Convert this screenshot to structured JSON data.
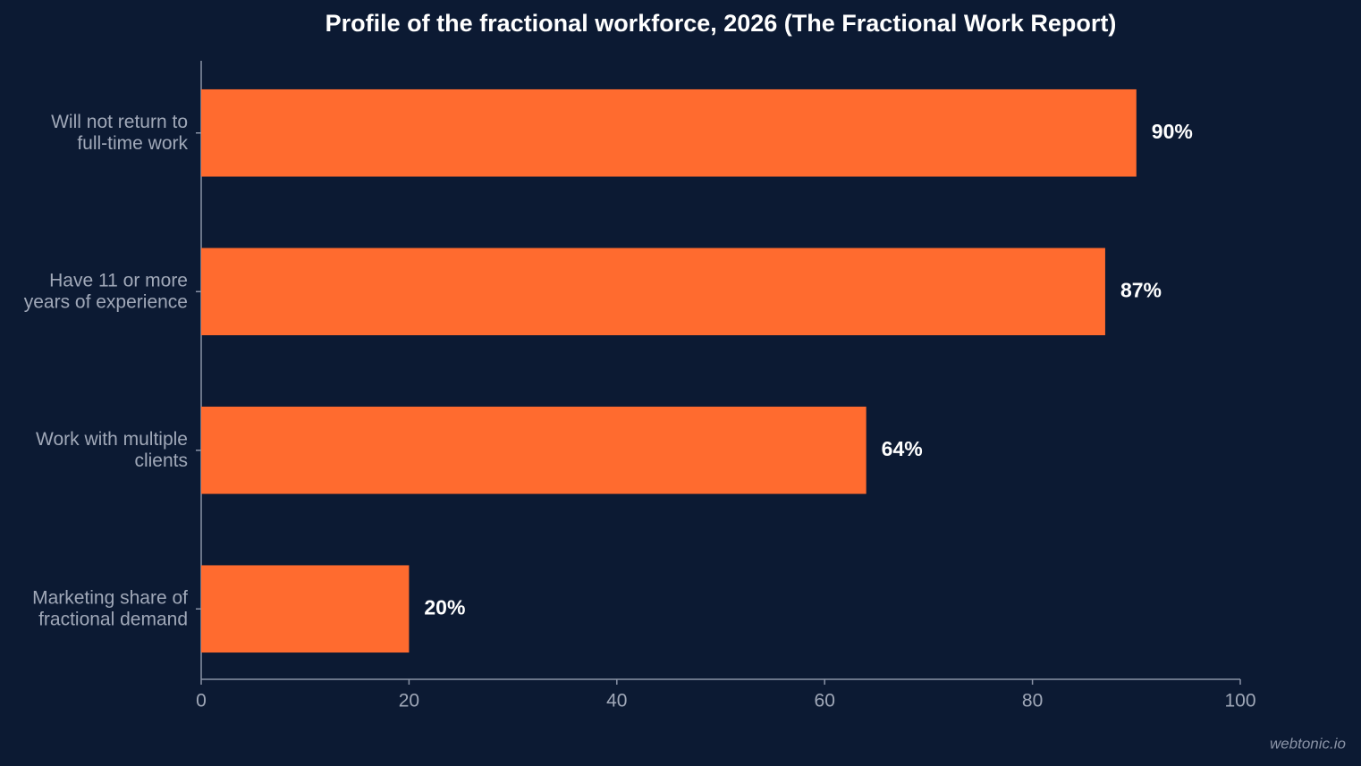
{
  "chart_data": {
    "type": "barh",
    "title": "Profile of the fractional workforce, 2026 (The Fractional Work Report)",
    "categories": [
      "Will not return to\nfull-time work",
      "Have 11 or more\nyears of experience",
      "Work with multiple\nclients",
      "Marketing share of\nfractional demand"
    ],
    "values": [
      90,
      87,
      64,
      20
    ],
    "value_labels": [
      "90%",
      "87%",
      "64%",
      "20%"
    ],
    "color": "#ff6b2f",
    "xlim": [
      0,
      100
    ],
    "xticks": [
      0,
      20,
      40,
      60,
      80,
      100
    ],
    "grid": false,
    "source": "webtonic.io"
  }
}
